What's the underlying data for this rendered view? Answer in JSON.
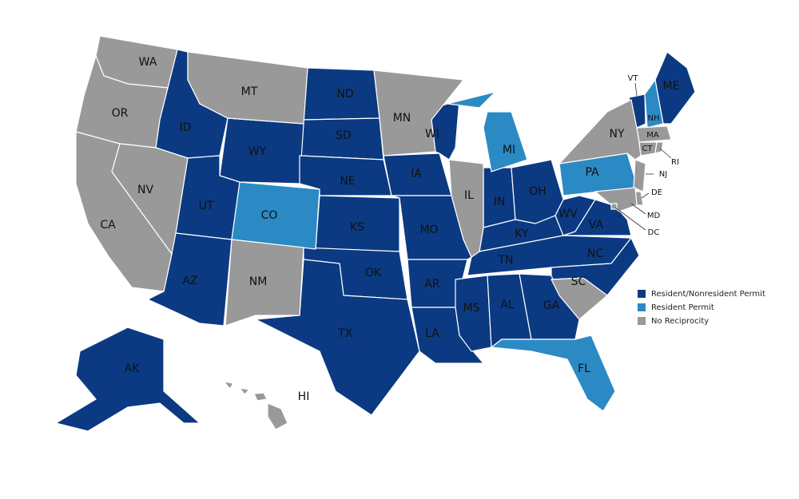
{
  "legend": {
    "items": [
      {
        "label": "Resident/Nonresident Permit",
        "color": "#0b3a82",
        "states": [
          "ID",
          "ND",
          "SD",
          "WY",
          "NE",
          "UT",
          "KS",
          "AZ",
          "OK",
          "TX",
          "IA",
          "MO",
          "AR",
          "LA",
          "WI",
          "IN",
          "OH",
          "KY",
          "WV",
          "VA",
          "TN",
          "NC",
          "MS",
          "AL",
          "GA",
          "VT",
          "ME",
          "AK"
        ]
      },
      {
        "label": "Resident Permit",
        "color": "#2b8ac4",
        "states": [
          "CO",
          "MI",
          "PA",
          "NH",
          "FL"
        ]
      },
      {
        "label": "No Reciprocity",
        "color": "#999999",
        "states": [
          "WA",
          "OR",
          "CA",
          "NV",
          "MT",
          "NM",
          "MN",
          "IL",
          "SC",
          "NY",
          "NJ",
          "DE",
          "MD",
          "DC",
          "MA",
          "CT",
          "RI",
          "HI"
        ]
      }
    ]
  }
}
